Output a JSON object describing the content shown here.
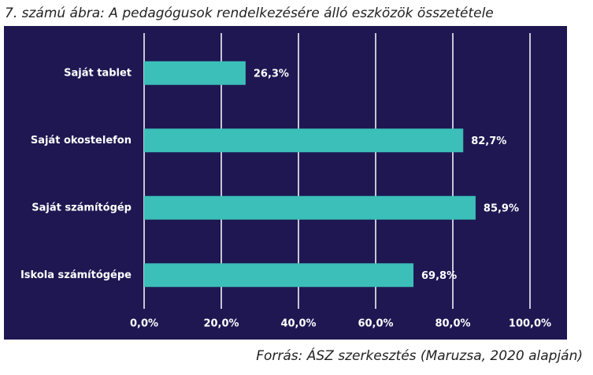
{
  "chart_data": {
    "type": "bar",
    "orientation": "horizontal",
    "title": "7. számú ábra: A pedagógusok rendelkezésére álló eszközök összetétele",
    "source": "Forrás: ÁSZ szerkesztés (Maruzsa, 2020 alapján)",
    "categories": [
      "Saját tablet",
      "Saját okostelefon",
      "Saját számítógép",
      "Iskola számítógépe"
    ],
    "values": [
      26.3,
      82.7,
      85.9,
      69.8
    ],
    "value_labels": [
      "26,3%",
      "82,7%",
      "85,9%",
      "69,8%"
    ],
    "color": "#3bbfb8",
    "xlim": [
      0,
      100
    ],
    "xticks": [
      {
        "value": 0,
        "label": "0,0%"
      },
      {
        "value": 20,
        "label": "20,0%"
      },
      {
        "value": 40,
        "label": "40,0%"
      },
      {
        "value": 60,
        "label": "60,0%"
      },
      {
        "value": 80,
        "label": "80,0%"
      },
      {
        "value": 100,
        "label": "100,0%"
      }
    ],
    "grid": true
  }
}
